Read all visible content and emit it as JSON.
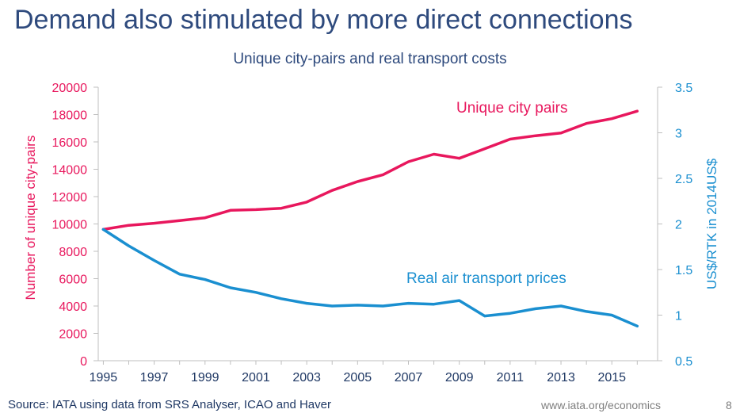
{
  "slide": {
    "title": "Demand also stimulated by more direct connections",
    "source": "Source: IATA using data from SRS Analyser, ICAO and Haver",
    "url": "www.iata.org/economics",
    "page_number": "8"
  },
  "chart_data": {
    "type": "line",
    "title": "Unique city-pairs and real transport costs",
    "x": [
      1995,
      1996,
      1997,
      1998,
      1999,
      2000,
      2001,
      2002,
      2003,
      2004,
      2005,
      2006,
      2007,
      2008,
      2009,
      2010,
      2011,
      2012,
      2013,
      2014,
      2015,
      2016
    ],
    "x_ticks": [
      "1995",
      "1997",
      "1999",
      "2001",
      "2003",
      "2005",
      "2007",
      "2009",
      "2011",
      "2013",
      "2015"
    ],
    "xlim": [
      1994.8,
      2016.8
    ],
    "left_axis": {
      "label": "Number of unique city-pairs",
      "ylim": [
        0,
        20000
      ],
      "ticks": [
        "0",
        "2000",
        "4000",
        "6000",
        "8000",
        "10000",
        "12000",
        "14000",
        "16000",
        "18000",
        "20000"
      ],
      "color": "#e8175d"
    },
    "right_axis": {
      "label": "US$/RTK in 2014US$",
      "ylim": [
        0.5,
        3.5
      ],
      "ticks": [
        "0.5",
        "1",
        "1.5",
        "2",
        "2.5",
        "3",
        "3.5"
      ],
      "color": "#1a8fd0"
    },
    "series": [
      {
        "name": "Unique city pairs",
        "axis": "left",
        "color": "#e8175d",
        "values": [
          9600,
          9900,
          10050,
          10250,
          10450,
          11000,
          11050,
          11150,
          11600,
          12450,
          13100,
          13600,
          14550,
          15100,
          14800,
          15500,
          16200,
          16450,
          16650,
          17350,
          17700,
          18250
        ]
      },
      {
        "name": "Real air transport prices",
        "axis": "right",
        "color": "#1a8fd0",
        "values": [
          1.94,
          1.76,
          1.6,
          1.45,
          1.39,
          1.3,
          1.25,
          1.18,
          1.13,
          1.1,
          1.11,
          1.1,
          1.13,
          1.12,
          1.16,
          0.99,
          1.02,
          1.07,
          1.1,
          1.04,
          1.0,
          0.88
        ]
      }
    ]
  }
}
